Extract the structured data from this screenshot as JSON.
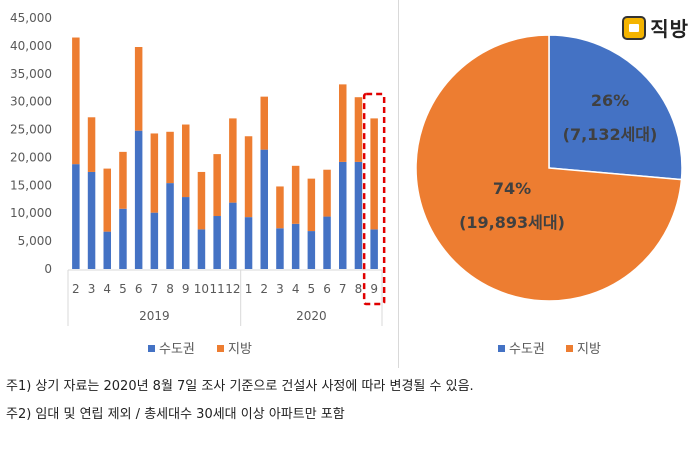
{
  "chart_data": [
    {
      "type": "bar",
      "stacked": true,
      "ylim": [
        0,
        45000
      ],
      "yticks": [
        "0",
        "5,000",
        "10,000",
        "15,000",
        "20,000",
        "25,000",
        "30,000",
        "35,000",
        "40,000",
        "45,000"
      ],
      "categories": [
        "2",
        "3",
        "4",
        "5",
        "6",
        "7",
        "8",
        "9",
        "10",
        "11",
        "12",
        "1",
        "2",
        "3",
        "4",
        "5",
        "6",
        "7",
        "8",
        "9"
      ],
      "groups": [
        {
          "label": "2019",
          "count": 11
        },
        {
          "label": "2020",
          "count": 9
        }
      ],
      "series": [
        {
          "name": "수도권",
          "color": "#4472C4",
          "values": [
            18800,
            17400,
            6700,
            10800,
            24800,
            10100,
            15400,
            12900,
            7100,
            9500,
            11900,
            9300,
            21400,
            7300,
            8100,
            6800,
            9400,
            19200,
            19200,
            7100
          ]
        },
        {
          "name": "지방",
          "color": "#ED7D31",
          "values": [
            22700,
            9800,
            11300,
            10200,
            15000,
            14200,
            9200,
            13000,
            10300,
            11100,
            15100,
            14500,
            9500,
            7500,
            10400,
            9400,
            8400,
            13900,
            11600,
            19900
          ]
        }
      ],
      "highlight_index": 19,
      "highlight_color": "#E00000",
      "grid": false,
      "legend_position": "bottom"
    },
    {
      "type": "pie",
      "slices": [
        {
          "name": "수도권",
          "value": 7132,
          "percent_label": "26%",
          "value_label": "(7,132세대)",
          "color": "#4472C4"
        },
        {
          "name": "지방",
          "value": 19893,
          "percent_label": "74%",
          "value_label": "(19,893세대)",
          "color": "#ED7D31"
        }
      ],
      "legend_position": "bottom"
    }
  ],
  "legend": {
    "item1": "수도권",
    "item2": "지방"
  },
  "logo": {
    "text": "직방"
  },
  "notes": {
    "note1": "주1) 상기 자료는 2020년 8월 7일 조사 기준으로 건설사 사정에 따라 변경될 수 있음.",
    "note2": "주2) 임대 및 연립 제외 / 총세대수 30세대 이상 아파트만 포함"
  }
}
